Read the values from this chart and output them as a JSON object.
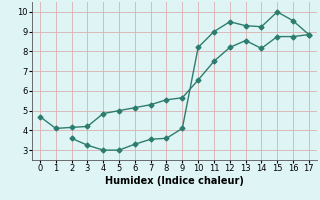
{
  "line1_x": [
    0,
    1,
    2,
    3,
    4,
    5,
    6,
    7,
    8,
    9,
    10,
    11,
    12,
    13,
    14,
    15,
    16,
    17
  ],
  "line1_y": [
    4.7,
    4.1,
    4.15,
    4.2,
    4.85,
    5.0,
    5.15,
    5.3,
    5.55,
    5.65,
    6.55,
    7.5,
    8.2,
    8.55,
    8.15,
    8.75,
    8.75,
    8.85
  ],
  "line2_x": [
    2,
    3,
    4,
    5,
    6,
    7,
    8,
    9,
    10,
    11,
    12,
    13,
    14,
    15,
    16,
    17
  ],
  "line2_y": [
    3.6,
    3.25,
    3.0,
    3.0,
    3.3,
    3.55,
    3.6,
    4.1,
    8.2,
    9.0,
    9.5,
    9.3,
    9.25,
    10.0,
    9.55,
    8.85
  ],
  "line_color": "#2d7d6e",
  "bg_color": "#dff5f5",
  "grid_color": "#d9b0b0",
  "xlabel": "Humidex (Indice chaleur)",
  "xlim": [
    -0.5,
    17.5
  ],
  "ylim": [
    2.5,
    10.5
  ],
  "xticks": [
    0,
    1,
    2,
    3,
    4,
    5,
    6,
    7,
    8,
    9,
    10,
    11,
    12,
    13,
    14,
    15,
    16,
    17
  ],
  "yticks": [
    3,
    4,
    5,
    6,
    7,
    8,
    9,
    10
  ],
  "marker": "D",
  "markersize": 2.5,
  "linewidth": 1.0,
  "xlabel_fontsize": 7,
  "tick_fontsize": 6
}
